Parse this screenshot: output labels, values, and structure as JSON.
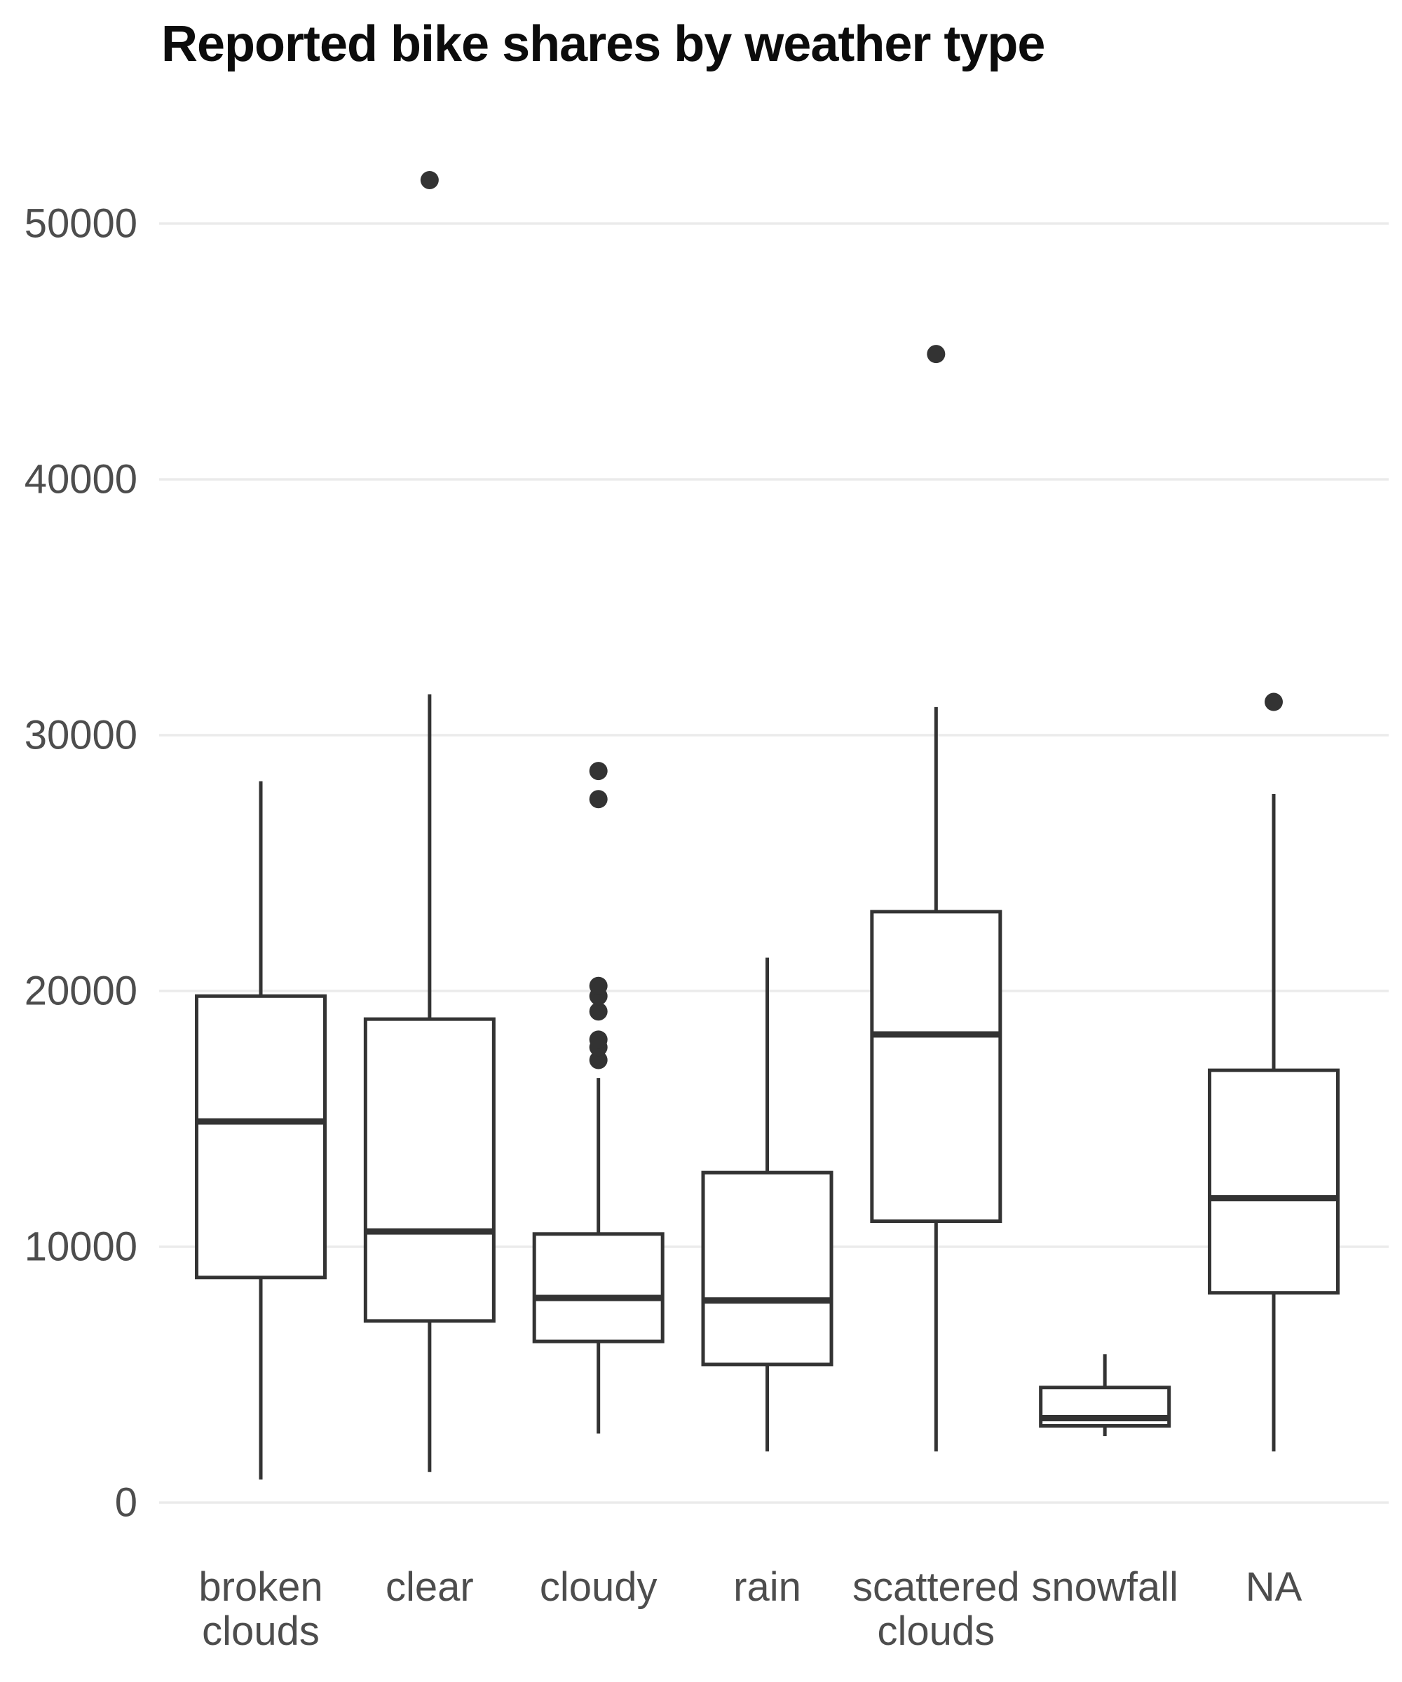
{
  "chart_data": {
    "type": "box",
    "title": "Reported bike shares by weather type",
    "xlabel": "",
    "ylabel": "",
    "y_ticks": [
      0,
      10000,
      20000,
      30000,
      40000,
      50000
    ],
    "ylim": [
      0,
      53000
    ],
    "grid": "horizontal-only",
    "legend": "none",
    "categories": [
      "broken clouds",
      "clear",
      "cloudy",
      "rain",
      "scattered clouds",
      "snowfall",
      "NA"
    ],
    "series": [
      {
        "category": "broken clouds",
        "label_lines": [
          "broken",
          "clouds"
        ],
        "min": 900,
        "q1": 8800,
        "median": 14900,
        "q3": 19800,
        "max": 28200,
        "outliers": []
      },
      {
        "category": "clear",
        "label_lines": [
          "clear"
        ],
        "min": 1200,
        "q1": 7100,
        "median": 10600,
        "q3": 18900,
        "max": 31600,
        "outliers": [
          51700
        ]
      },
      {
        "category": "cloudy",
        "label_lines": [
          "cloudy"
        ],
        "min": 2700,
        "q1": 6300,
        "median": 8000,
        "q3": 10500,
        "max": 16600,
        "outliers": [
          17300,
          17800,
          18100,
          19200,
          19800,
          20200,
          27500,
          28600
        ]
      },
      {
        "category": "rain",
        "label_lines": [
          "rain"
        ],
        "min": 2000,
        "q1": 5400,
        "median": 7900,
        "q3": 12900,
        "max": 21300,
        "outliers": []
      },
      {
        "category": "scattered clouds",
        "label_lines": [
          "scattered",
          "clouds"
        ],
        "min": 2000,
        "q1": 11000,
        "median": 18300,
        "q3": 23100,
        "max": 31100,
        "outliers": [
          44900
        ]
      },
      {
        "category": "snowfall",
        "label_lines": [
          "snowfall"
        ],
        "min": 2600,
        "q1": 3000,
        "median": 3300,
        "q3": 4500,
        "max": 5800,
        "outliers": []
      },
      {
        "category": "NA",
        "label_lines": [
          "NA"
        ],
        "min": 2000,
        "q1": 8200,
        "median": 11900,
        "q3": 16900,
        "max": 27700,
        "outliers": [
          31300
        ]
      }
    ],
    "colors": {
      "background": "#FFFFFF",
      "box_stroke": "#333333",
      "box_fill": "#FFFFFF",
      "outlier_fill": "#333333",
      "gridline": "#EBEBEB",
      "tick_text": "#4D4D4D",
      "title_text": "#0C0C0C"
    }
  }
}
